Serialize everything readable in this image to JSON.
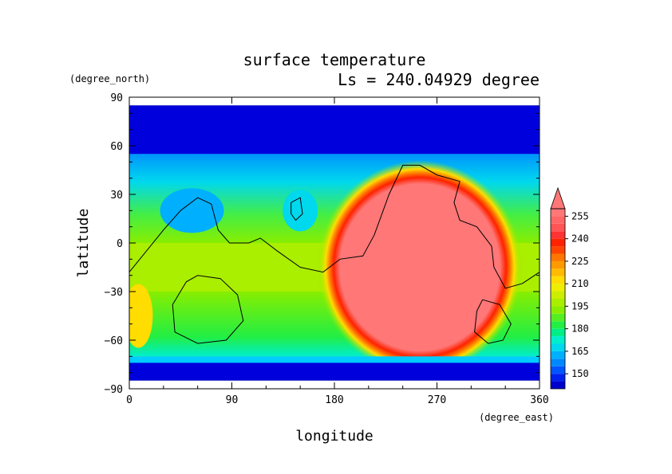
{
  "chart_data": {
    "type": "heatmap",
    "title": "surface temperature",
    "subtitle": "Ls = 240.04929 degree",
    "xlabel": "longitude",
    "ylabel": "latitude",
    "x_units": "(degree_east)",
    "y_units": "(degree_north)",
    "xlim": [
      0,
      360
    ],
    "ylim": [
      -90,
      90
    ],
    "x_ticks": [
      0,
      90,
      180,
      270,
      360
    ],
    "y_ticks": [
      90,
      60,
      30,
      0,
      -30,
      -60,
      -90
    ],
    "x_tick_labels": [
      "0",
      "90",
      "180",
      "270",
      "360"
    ],
    "y_tick_labels": [
      "90",
      "60",
      "30",
      "0",
      "−30",
      "−60",
      "−90"
    ],
    "colorbar": {
      "levels": [
        140,
        145,
        150,
        155,
        160,
        165,
        170,
        175,
        180,
        185,
        190,
        195,
        200,
        205,
        210,
        215,
        220,
        225,
        230,
        235,
        240,
        245,
        250,
        255,
        260
      ],
      "colors": [
        "#0000cc",
        "#0022ee",
        "#0055ff",
        "#0088ff",
        "#00b0ff",
        "#00d8ee",
        "#00eecc",
        "#00ee88",
        "#22ee44",
        "#55ee22",
        "#88ee00",
        "#aaee00",
        "#ccee00",
        "#eeee00",
        "#ffdd00",
        "#ffbb00",
        "#ff9900",
        "#ff7700",
        "#ff4400",
        "#ff2200",
        "#ff3333",
        "#ff5555",
        "#ff6666",
        "#ff7777"
      ],
      "tick_labels": [
        "255",
        "240",
        "225",
        "210",
        "195",
        "180",
        "165",
        "150"
      ],
      "tick_values": [
        255,
        240,
        225,
        210,
        195,
        180,
        165,
        150
      ],
      "extend": "max"
    },
    "regions": [
      {
        "name": "north polar cap",
        "value": 145,
        "lon": [
          0,
          360
        ],
        "lat": [
          55,
          85
        ]
      },
      {
        "name": "southern dayside hot region",
        "value": 258,
        "lon_center": 255,
        "lat_center": -15,
        "lon_halfwidth": 75,
        "lat_halfwidth": 55
      },
      {
        "name": "south polar cap",
        "value": 148,
        "lon": [
          0,
          360
        ],
        "lat": [
          -85,
          -72
        ]
      }
    ]
  }
}
